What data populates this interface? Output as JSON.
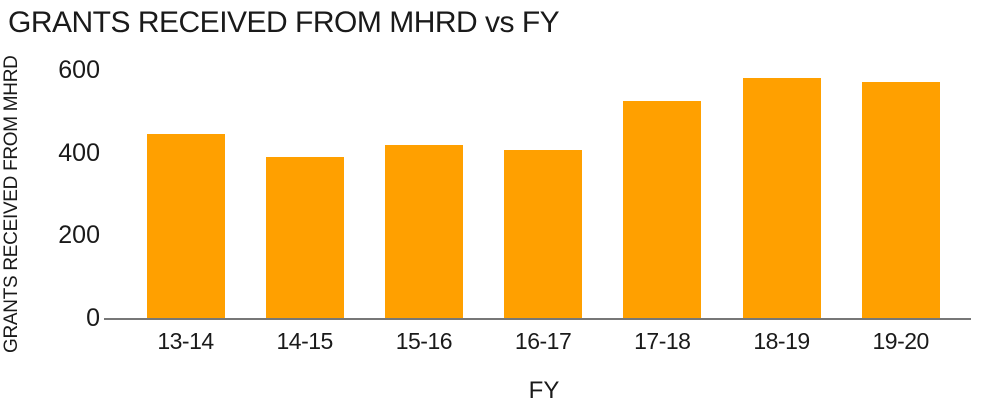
{
  "chart_data": {
    "type": "bar",
    "title": "GRANTS RECEIVED FROM MHRD vs FY",
    "xlabel": "FY",
    "ylabel": "GRANTS RECEIVED FROM MHRD",
    "categories": [
      "13-14",
      "14-15",
      "15-16",
      "16-17",
      "17-18",
      "18-19",
      "19-20"
    ],
    "values": [
      449,
      393,
      422,
      410,
      527,
      583,
      575
    ],
    "yticks": [
      0,
      200,
      400,
      600
    ],
    "ylim": [
      0,
      600
    ],
    "grid": false,
    "legend": "none",
    "bar_color": "#FFA000",
    "axis_color": "#777777",
    "text_color": "#1A1A1A",
    "background": "#FFFFFF"
  }
}
